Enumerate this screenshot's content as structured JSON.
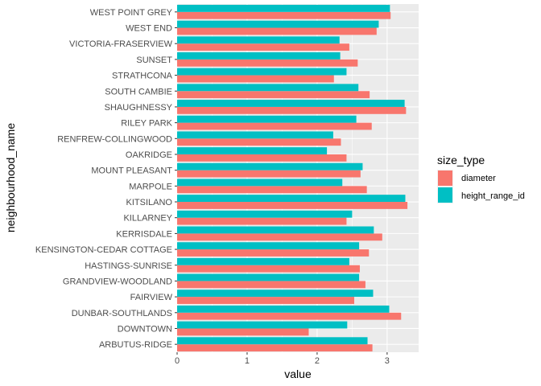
{
  "chart_data": {
    "type": "bar",
    "orientation": "horizontal",
    "xlabel": "value",
    "ylabel": "neighbourhood_name",
    "xlim": [
      0,
      3.45
    ],
    "xticks": [
      0,
      1,
      2,
      3
    ],
    "grid": true,
    "legend": {
      "title": "size_type",
      "position": "right"
    },
    "categories": [
      "WEST POINT GREY",
      "WEST END",
      "VICTORIA-FRASERVIEW",
      "SUNSET",
      "STRATHCONA",
      "SOUTH CAMBIE",
      "SHAUGHNESSY",
      "RILEY PARK",
      "RENFREW-COLLINGWOOD",
      "OAKRIDGE",
      "MOUNT PLEASANT",
      "MARPOLE",
      "KITSILANO",
      "KILLARNEY",
      "KERRISDALE",
      "KENSINGTON-CEDAR COTTAGE",
      "HASTINGS-SUNRISE",
      "GRANDVIEW-WOODLAND",
      "FAIRVIEW",
      "DUNBAR-SOUTHLANDS",
      "DOWNTOWN",
      "ARBUTUS-RIDGE"
    ],
    "series": [
      {
        "name": "diameter",
        "color": "#F8766D",
        "values": [
          3.05,
          2.85,
          2.46,
          2.58,
          2.24,
          2.75,
          3.27,
          2.78,
          2.34,
          2.42,
          2.62,
          2.71,
          3.29,
          2.42,
          2.93,
          2.74,
          2.61,
          2.69,
          2.53,
          3.2,
          1.88,
          2.79
        ]
      },
      {
        "name": "height_range_id",
        "color": "#00BFC4",
        "values": [
          3.04,
          2.88,
          2.32,
          2.33,
          2.42,
          2.59,
          3.25,
          2.56,
          2.23,
          2.14,
          2.65,
          2.36,
          3.26,
          2.5,
          2.81,
          2.6,
          2.46,
          2.6,
          2.8,
          3.03,
          2.43,
          2.72
        ]
      }
    ]
  }
}
